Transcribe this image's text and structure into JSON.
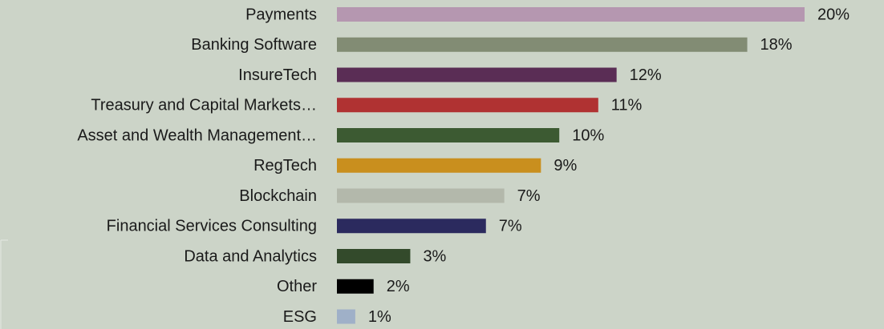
{
  "chart_data": {
    "type": "barh",
    "categories": [
      "Payments",
      "Banking Software",
      "InsureTech",
      "Treasury and Capital Markets…",
      "Asset and Wealth Management…",
      "RegTech",
      "Blockchain",
      "Financial Services Consulting",
      "Data and Analytics",
      "Other",
      "ESG"
    ],
    "values": [
      20.4,
      17.9,
      12.2,
      11.4,
      9.7,
      8.9,
      7.3,
      6.5,
      3.2,
      1.6,
      0.8
    ],
    "value_labels": [
      "20%",
      "18%",
      "12%",
      "11%",
      "10%",
      "9%",
      "7%",
      "7%",
      "3%",
      "2%",
      "1%"
    ],
    "colors": [
      "#b597b0",
      "#828c74",
      "#5a2d55",
      "#b03232",
      "#3c5a32",
      "#c98f1e",
      "#b3b8ab",
      "#2b2a5e",
      "#334a2b",
      "#000000",
      "#9fb0c8"
    ],
    "xlim": [
      0,
      20.4
    ]
  }
}
